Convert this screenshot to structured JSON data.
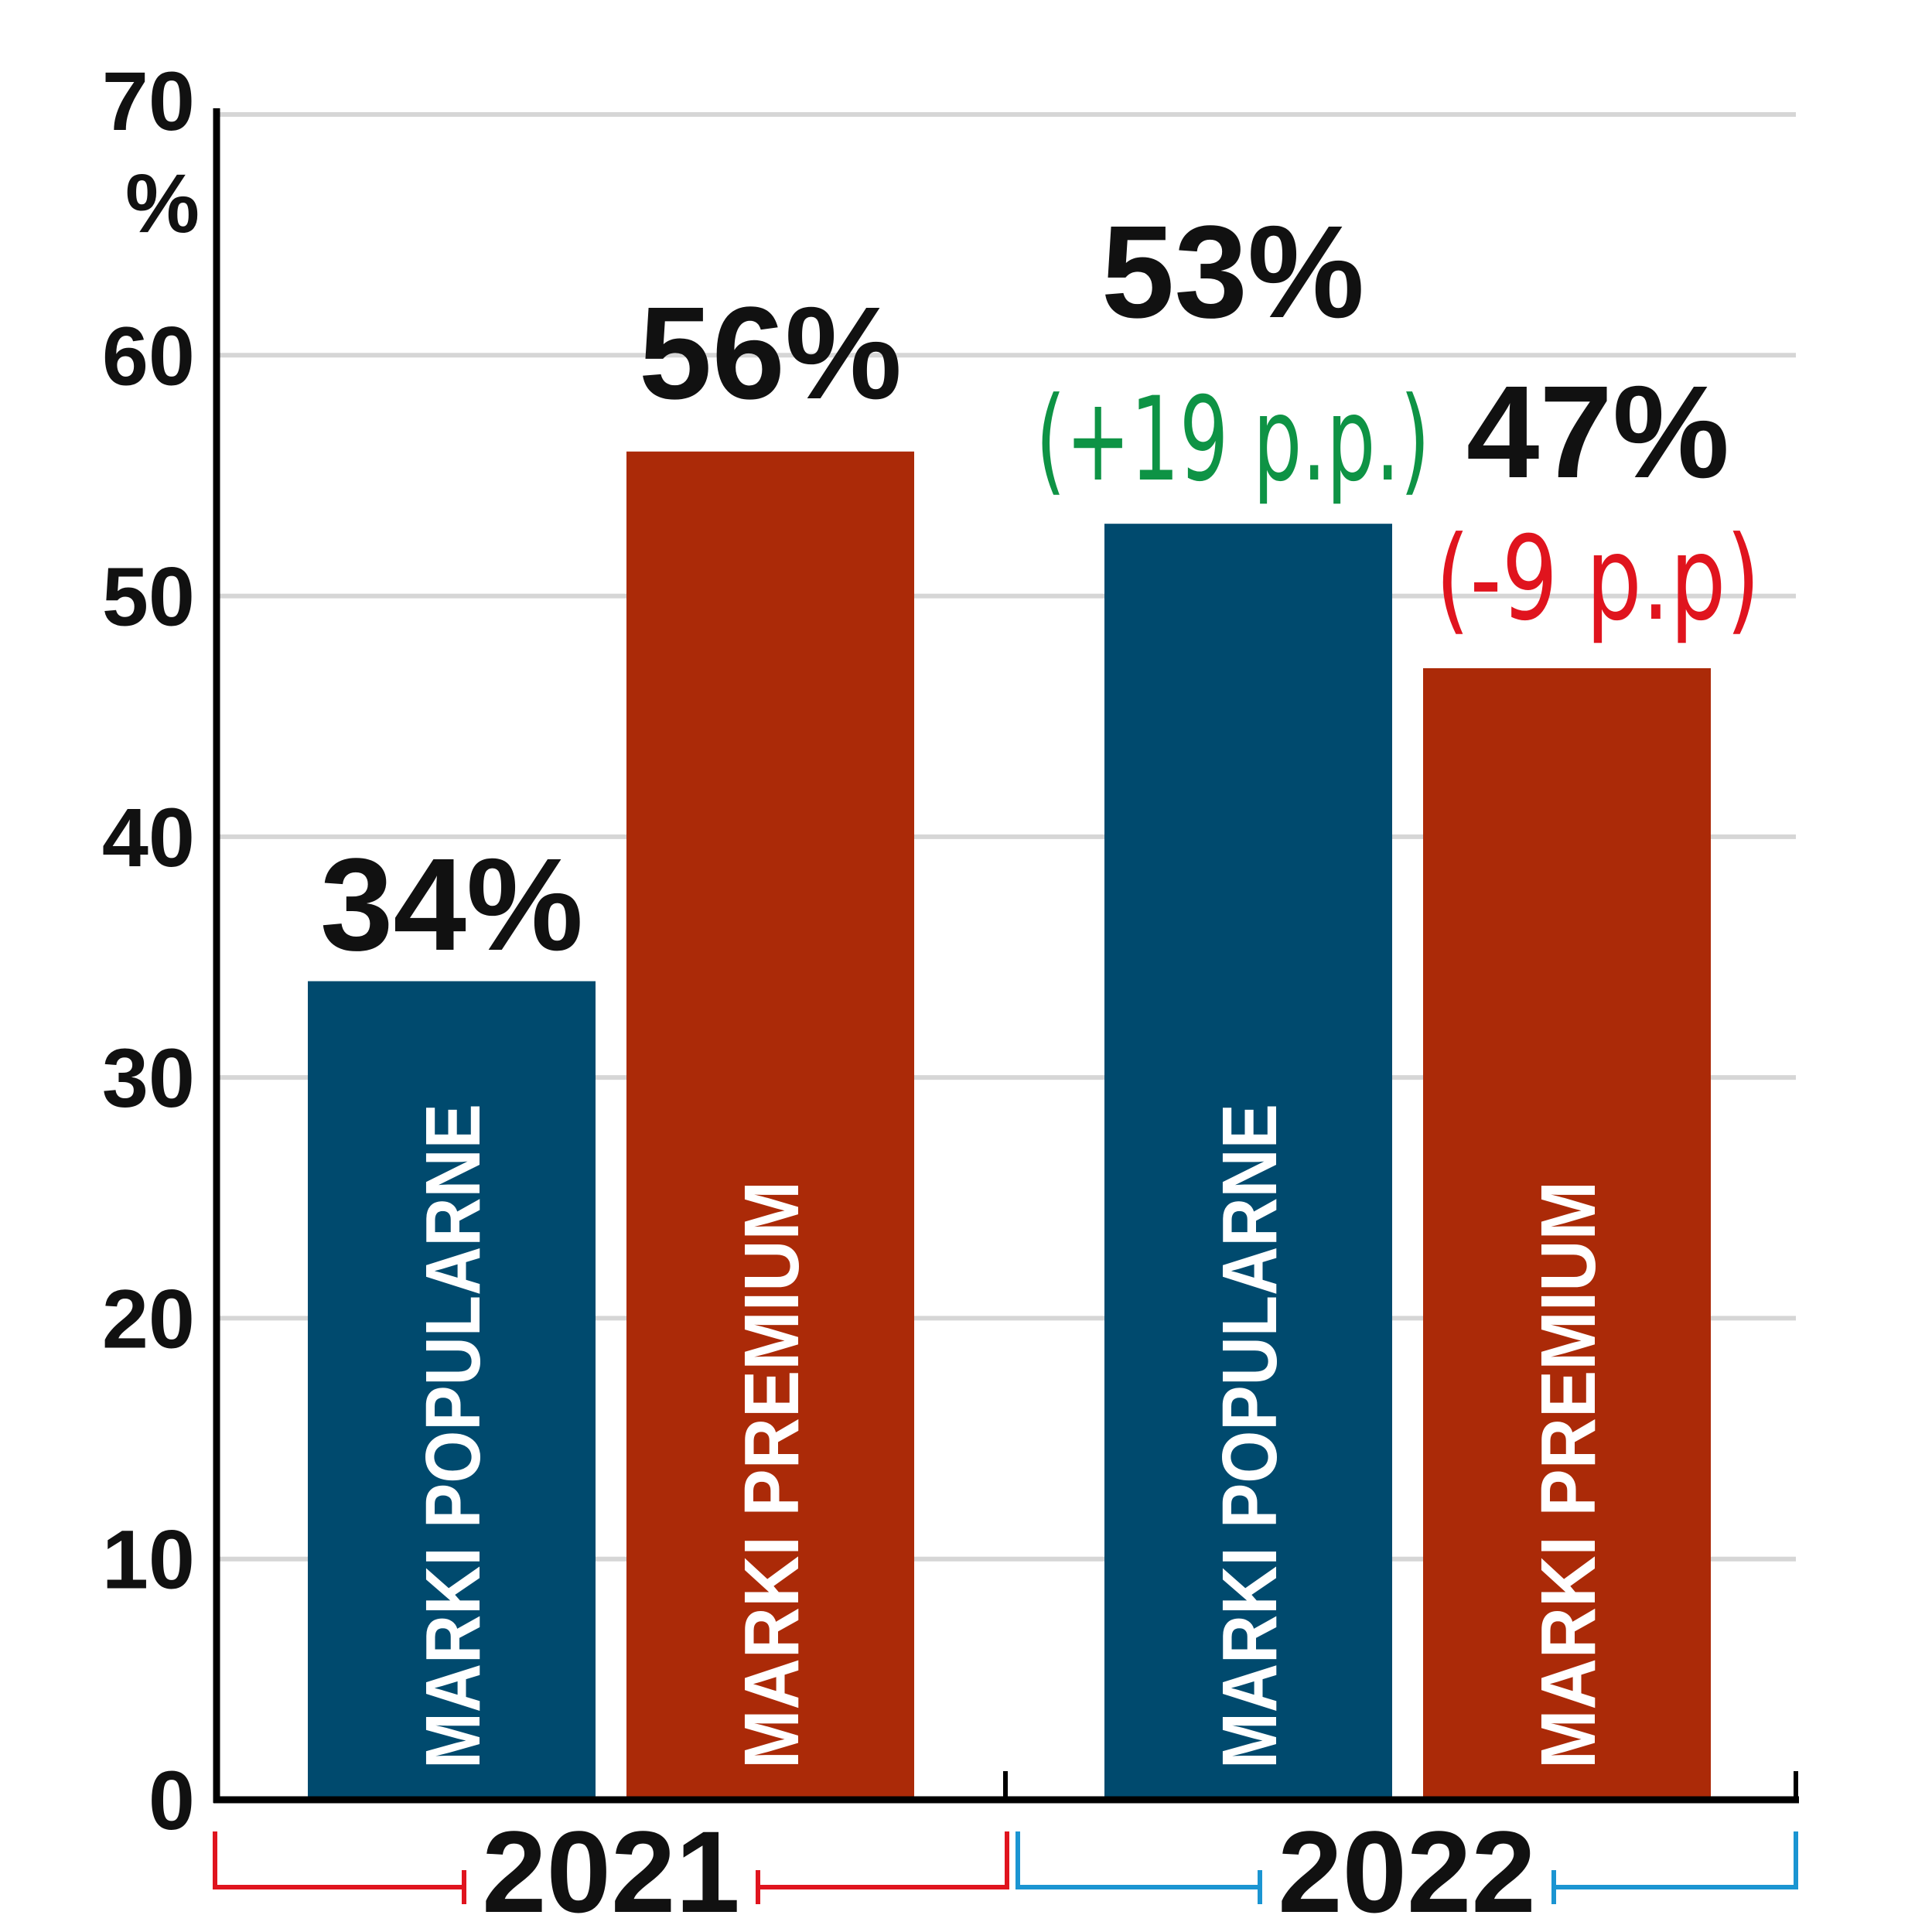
{
  "chart_data": {
    "type": "bar",
    "title": "",
    "xlabel": "",
    "ylabel": "",
    "ylim": [
      0,
      70
    ],
    "y_ticks": [
      "0",
      "10",
      "20",
      "30",
      "40",
      "50",
      "60",
      "70"
    ],
    "y_unit": "%",
    "grid": true,
    "groups": [
      {
        "year": "2021",
        "bracket_color": "#e0141e",
        "bars": [
          {
            "category": "MARKI POPULARNE",
            "value": 34,
            "label": "34%",
            "color": "#004a6e",
            "change": "",
            "change_color": ""
          },
          {
            "category": "MARKI PREMIUM",
            "value": 56,
            "label": "56%",
            "color": "#ab2a08",
            "change": "",
            "change_color": ""
          }
        ]
      },
      {
        "year": "2022",
        "bracket_color": "#1b95d2",
        "bars": [
          {
            "category": "MARKI POPULARNE",
            "value": 53,
            "label": "53%",
            "color": "#004a6e",
            "change": "(+19 p.p.)",
            "change_color": "#0e9345"
          },
          {
            "category": "MARKI PREMIUM",
            "value": 47,
            "label": "47%",
            "color": "#ab2a08",
            "change": "(-9 p.p)",
            "change_color": "#e0141e"
          }
        ]
      }
    ]
  }
}
